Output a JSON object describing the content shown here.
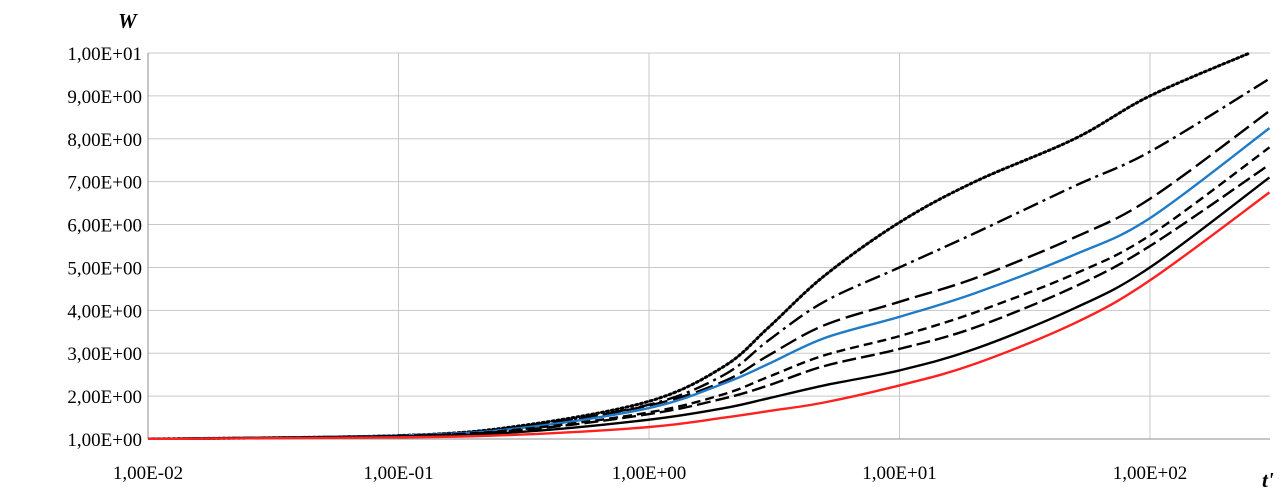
{
  "chart_data": {
    "type": "line",
    "title": "",
    "xlabel": "t'",
    "ylabel": "W",
    "xscale": "log",
    "xlim": [
      0.01,
      300
    ],
    "ylim": [
      1,
      10
    ],
    "grid": true,
    "legend": "none",
    "x_ticks": [
      "1,00E-02",
      "1,00E-01",
      "1,00E+00",
      "1,00E+01",
      "1,00E+02"
    ],
    "y_ticks": [
      "1,00E+00",
      "2,00E+00",
      "3,00E+00",
      "4,00E+00",
      "5,00E+00",
      "6,00E+00",
      "7,00E+00",
      "8,00E+00",
      "9,00E+00",
      "1,00E+01"
    ],
    "series": [
      {
        "style": "dotted",
        "color": "#000000",
        "x": [
          0.01,
          0.1,
          0.3,
          1,
          2,
          3,
          5,
          10,
          20,
          50,
          100,
          250
        ],
        "y": [
          1.0,
          1.08,
          1.3,
          1.88,
          2.7,
          3.6,
          4.8,
          6.05,
          7.0,
          8.0,
          9.0,
          10.0
        ]
      },
      {
        "style": "dash-dot",
        "color": "#000000",
        "x": [
          0.01,
          0.1,
          0.3,
          1,
          2,
          3,
          5,
          10,
          20,
          50,
          100,
          300
        ],
        "y": [
          1.0,
          1.08,
          1.28,
          1.8,
          2.5,
          3.3,
          4.2,
          5.0,
          5.8,
          6.9,
          7.7,
          9.4
        ]
      },
      {
        "style": "long-dash",
        "color": "#000000",
        "x": [
          0.01,
          0.1,
          0.3,
          1,
          2,
          3,
          5,
          10,
          20,
          50,
          100,
          300
        ],
        "y": [
          1.0,
          1.08,
          1.27,
          1.78,
          2.35,
          2.95,
          3.65,
          4.2,
          4.75,
          5.7,
          6.6,
          8.65
        ]
      },
      {
        "style": "solid",
        "color": "#1f7bc8",
        "x": [
          0.01,
          0.1,
          0.3,
          1,
          2,
          3,
          5,
          10,
          20,
          50,
          100,
          300
        ],
        "y": [
          1.0,
          1.08,
          1.25,
          1.72,
          2.3,
          2.75,
          3.35,
          3.85,
          4.4,
          5.3,
          6.15,
          8.25
        ]
      },
      {
        "style": "short-dash",
        "color": "#000000",
        "x": [
          0.01,
          0.1,
          0.3,
          1,
          2,
          3,
          5,
          10,
          20,
          50,
          100,
          300
        ],
        "y": [
          1.0,
          1.07,
          1.22,
          1.62,
          2.05,
          2.45,
          2.95,
          3.4,
          3.95,
          4.85,
          5.75,
          7.8
        ]
      },
      {
        "style": "long-dash-2",
        "color": "#000000",
        "x": [
          0.01,
          0.1,
          0.3,
          1,
          2,
          3,
          5,
          10,
          20,
          50,
          100,
          300
        ],
        "y": [
          1.0,
          1.07,
          1.2,
          1.58,
          1.95,
          2.25,
          2.7,
          3.1,
          3.6,
          4.55,
          5.5,
          7.4
        ]
      },
      {
        "style": "solid",
        "color": "#000000",
        "x": [
          0.01,
          0.1,
          0.3,
          1,
          2,
          3,
          5,
          10,
          20,
          50,
          100,
          300
        ],
        "y": [
          1.0,
          1.06,
          1.16,
          1.45,
          1.72,
          1.95,
          2.25,
          2.6,
          3.1,
          4.05,
          5.0,
          7.1
        ]
      },
      {
        "style": "solid",
        "color": "#ff2020",
        "x": [
          0.01,
          0.1,
          0.3,
          1,
          2,
          3,
          5,
          10,
          20,
          50,
          100,
          300
        ],
        "y": [
          1.0,
          1.04,
          1.1,
          1.28,
          1.5,
          1.65,
          1.85,
          2.25,
          2.75,
          3.7,
          4.7,
          6.75
        ]
      }
    ]
  }
}
